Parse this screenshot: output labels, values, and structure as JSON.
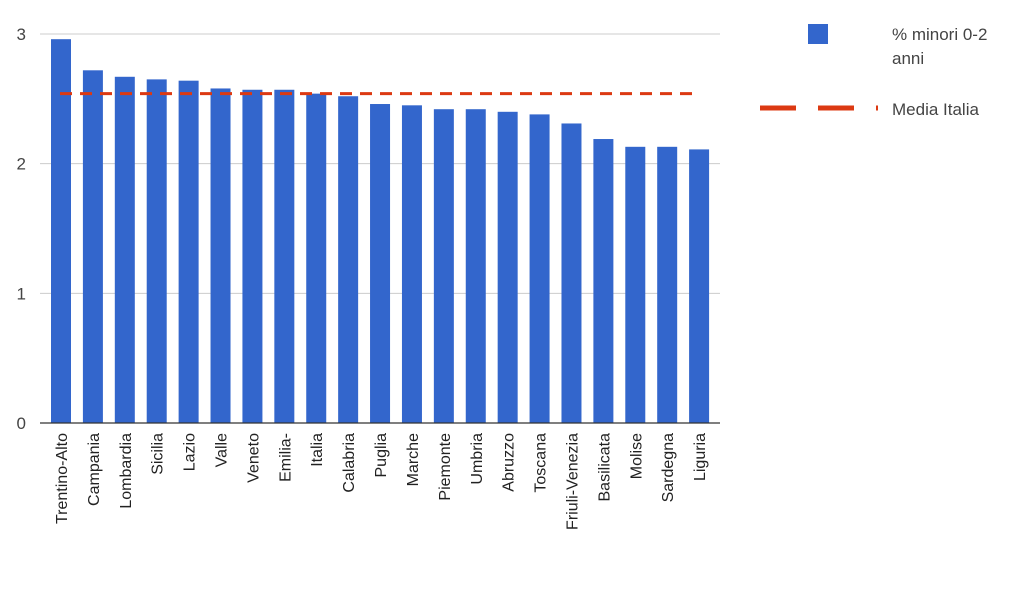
{
  "chart_data": {
    "type": "bar",
    "categories": [
      "Trentino-Alto",
      "Campania",
      "Lombardia",
      "Sicilia",
      "Lazio",
      "Valle",
      "Veneto",
      "Emilia-",
      "Italia",
      "Calabria",
      "Puglia",
      "Marche",
      "Piemonte",
      "Umbria",
      "Abruzzo",
      "Toscana",
      "Friuli-Venezia",
      "Basilicata",
      "Molise",
      "Sardegna",
      "Liguria"
    ],
    "series": [
      {
        "name": "% minori 0-2 anni",
        "values": [
          2.96,
          2.72,
          2.67,
          2.65,
          2.64,
          2.58,
          2.57,
          2.57,
          2.54,
          2.52,
          2.46,
          2.45,
          2.42,
          2.42,
          2.4,
          2.38,
          2.31,
          2.19,
          2.13,
          2.13,
          2.11
        ],
        "color": "#3366CC"
      }
    ],
    "reference_line": {
      "name": "Media Italia",
      "value": 2.54,
      "color": "#DC3912",
      "style": "dashed"
    },
    "yticks": [
      0,
      1,
      2,
      3
    ],
    "ylim": [
      0,
      3
    ],
    "grid": true,
    "legend_position": "right",
    "legend": [
      {
        "label_lines": [
          "% minori 0-2",
          "anni"
        ],
        "kind": "box",
        "color": "#3366CC"
      },
      {
        "label_lines": [
          "Media Italia"
        ],
        "kind": "dashed-line",
        "color": "#DC3912"
      }
    ]
  }
}
